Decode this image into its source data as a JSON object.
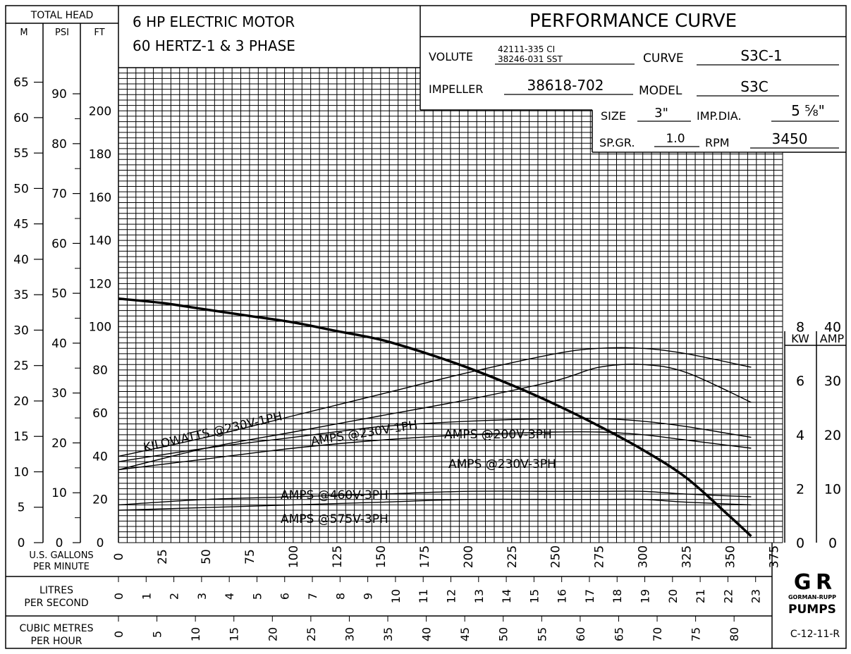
{
  "header": {
    "total_head_label": "TOTAL HEAD",
    "unit_m": "M",
    "unit_psi": "PSI",
    "unit_ft": "FT",
    "motor_line1": "6 HP ELECTRIC MOTOR",
    "motor_line2": "60 HERTZ-1 & 3 PHASE",
    "title": "PERFORMANCE CURVE"
  },
  "specs": {
    "volute_label": "VOLUTE",
    "volute_line1": "42111-335 CI",
    "volute_line2": "38246-031 SST",
    "curve_label": "CURVE",
    "curve_value": "S3C-1",
    "impeller_label": "IMPELLER",
    "impeller_value": "38618-702",
    "model_label": "MODEL",
    "model_value": "S3C",
    "size_label": "SIZE",
    "size_value": "3\"",
    "impdia_label": "IMP.DIA.",
    "impdia_value": "5 ⅝\"",
    "spgr_label": "SP.GR.",
    "spgr_value": "1.0",
    "rpm_label": "RPM",
    "rpm_value": "3450"
  },
  "axes": {
    "m_ticks": [
      "0",
      "5",
      "10",
      "15",
      "20",
      "25",
      "30",
      "35",
      "40",
      "45",
      "50",
      "55",
      "60",
      "65"
    ],
    "psi_ticks": [
      "0",
      "10",
      "20",
      "30",
      "40",
      "50",
      "60",
      "70",
      "80",
      "90"
    ],
    "ft_ticks": [
      "0",
      "20",
      "40",
      "60",
      "80",
      "100",
      "120",
      "140",
      "160",
      "180",
      "200"
    ],
    "gpm_label_1": "U.S. GALLONS",
    "gpm_label_2": "PER MINUTE",
    "gpm_ticks": [
      "0",
      "25",
      "50",
      "75",
      "100",
      "125",
      "150",
      "175",
      "200",
      "225",
      "250",
      "275",
      "300",
      "325",
      "350",
      "375"
    ],
    "lps_label_1": "LITRES",
    "lps_label_2": "PER SECOND",
    "lps_ticks": [
      "0",
      "1",
      "2",
      "3",
      "4",
      "5",
      "6",
      "7",
      "8",
      "9",
      "10",
      "11",
      "12",
      "13",
      "14",
      "15",
      "16",
      "17",
      "18",
      "19",
      "20",
      "21",
      "22",
      "23"
    ],
    "cmh_label_1": "CUBIC METRES",
    "cmh_label_2": "PER HOUR",
    "cmh_ticks": [
      "0",
      "5",
      "10",
      "15",
      "20",
      "25",
      "30",
      "35",
      "40",
      "45",
      "50",
      "55",
      "60",
      "65",
      "70",
      "75",
      "80",
      "85"
    ],
    "kw_label": "KW",
    "amp_label": "AMP",
    "kw_ticks": [
      "0",
      "2",
      "4",
      "6",
      "8"
    ],
    "amp_ticks": [
      "0",
      "10",
      "20",
      "30",
      "40"
    ]
  },
  "labels": {
    "kw_1ph": "KILOWATTS @230V-1PH",
    "amps_230_1ph": "AMPS @230V-1PH",
    "amps_200_3ph": "AMPS @200V-3PH",
    "amps_230_3ph": "AMPS @230V-3PH",
    "amps_460_3ph": "AMPS @460V-3PH",
    "amps_575_3ph": "AMPS @575V-3PH"
  },
  "logo": {
    "mark": "G R",
    "line1": "GORMAN-RUPP",
    "line2": "PUMPS"
  },
  "code": "C-12-11-R",
  "chart_data": {
    "type": "line",
    "title": "PERFORMANCE CURVE",
    "xlabel": "U.S. GALLONS PER MINUTE",
    "ylabel": "TOTAL HEAD (FT)",
    "xlim": [
      0,
      380
    ],
    "ylim": [
      0,
      220
    ],
    "grid": true,
    "series": [
      {
        "axis": "head",
        "x": [
          0,
          25,
          50,
          75,
          100,
          125,
          150,
          175,
          200,
          225,
          250,
          275,
          300,
          325,
          350,
          362
        ],
        "values": [
          113,
          111,
          108,
          105,
          102,
          98,
          94,
          88,
          81,
          73,
          64,
          54,
          43,
          30,
          12,
          3
        ]
      },
      {
        "name": "KILOWATTS @230V-1PH",
        "axis": "power",
        "x": [
          0,
          50,
          100,
          150,
          200,
          250,
          275,
          300,
          325,
          362
        ],
        "values": [
          3.2,
          3.9,
          4.7,
          5.5,
          6.3,
          7.0,
          7.2,
          7.2,
          7.0,
          6.5
        ]
      },
      {
        "name": "AMPS @230V-1PH",
        "axis": "power",
        "x": [
          0,
          50,
          100,
          150,
          200,
          250,
          275,
          300,
          325,
          362
        ],
        "values": [
          2.7,
          3.5,
          4.1,
          4.7,
          5.3,
          6.0,
          6.5,
          6.6,
          6.3,
          5.2
        ]
      },
      {
        "name": "AMPS @200V-3PH",
        "axis": "power",
        "x": [
          0,
          50,
          100,
          150,
          200,
          250,
          275,
          300,
          325,
          362
        ],
        "values": [
          3.0,
          3.5,
          3.9,
          4.3,
          4.5,
          4.6,
          4.6,
          4.5,
          4.3,
          3.9
        ]
      },
      {
        "name": "AMPS @230V-3PH",
        "axis": "power",
        "x": [
          0,
          50,
          100,
          150,
          200,
          250,
          275,
          300,
          325,
          362
        ],
        "values": [
          2.7,
          3.1,
          3.5,
          3.8,
          4.0,
          4.1,
          4.1,
          4.0,
          3.8,
          3.5
        ]
      },
      {
        "name": "AMPS @460V-3PH",
        "axis": "power",
        "x": [
          0,
          50,
          100,
          150,
          200,
          250,
          275,
          300,
          325,
          362
        ],
        "values": [
          1.4,
          1.6,
          1.7,
          1.8,
          1.9,
          1.9,
          1.9,
          1.9,
          1.8,
          1.7
        ]
      },
      {
        "name": "AMPS @575V-3PH",
        "axis": "power",
        "x": [
          0,
          50,
          100,
          150,
          200,
          250,
          275,
          300,
          325,
          362
        ],
        "values": [
          1.2,
          1.3,
          1.4,
          1.5,
          1.6,
          1.6,
          1.6,
          1.6,
          1.5,
          1.4
        ]
      }
    ],
    "power_axis": {
      "kw_range": [
        0,
        8
      ],
      "amp_range": [
        0,
        40
      ]
    }
  }
}
